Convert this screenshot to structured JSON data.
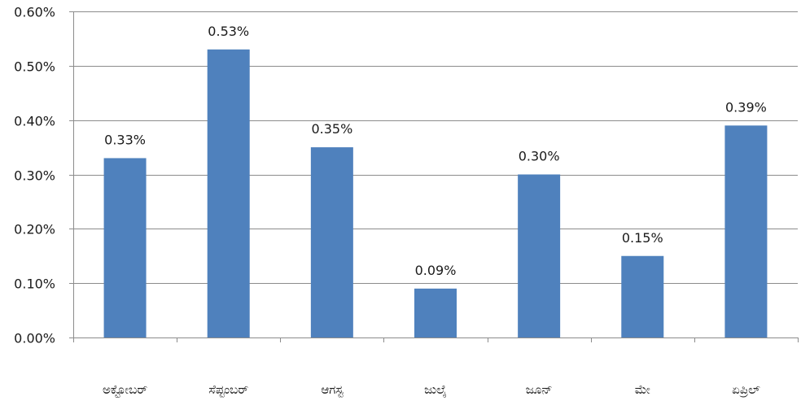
{
  "chart_data": {
    "type": "bar",
    "title": "",
    "xlabel": "",
    "ylabel": "",
    "categories": [
      "ಅಕ್ಟೋಬರ್",
      "ಸೆಪ್ಟಂಬರ್",
      "ಆಗಸ್ಟ",
      "ಜುಲೈ",
      "ಜೂನ್",
      "ಮೇ",
      "ಏಪ್ರಿಲ್"
    ],
    "values": [
      0.33,
      0.53,
      0.35,
      0.09,
      0.3,
      0.15,
      0.39
    ],
    "data_labels": [
      "0.33%",
      "0.53%",
      "0.35%",
      "0.09%",
      "0.30%",
      "0.15%",
      "0.39%"
    ],
    "ylim": [
      0,
      0.6
    ],
    "y_ticks": [
      0,
      0.1,
      0.2,
      0.3,
      0.4,
      0.5,
      0.6
    ],
    "y_tick_labels": [
      "0.00%",
      "0.10%",
      "0.20%",
      "0.30%",
      "0.40%",
      "0.50%",
      "0.60%"
    ],
    "grid": true,
    "legend": "none",
    "colors": {
      "bar": "#4f81bd",
      "grid": "#8c8c8c",
      "axis": "#8c8c8c",
      "text": "#1a1a1a",
      "background": "#ffffff"
    }
  }
}
